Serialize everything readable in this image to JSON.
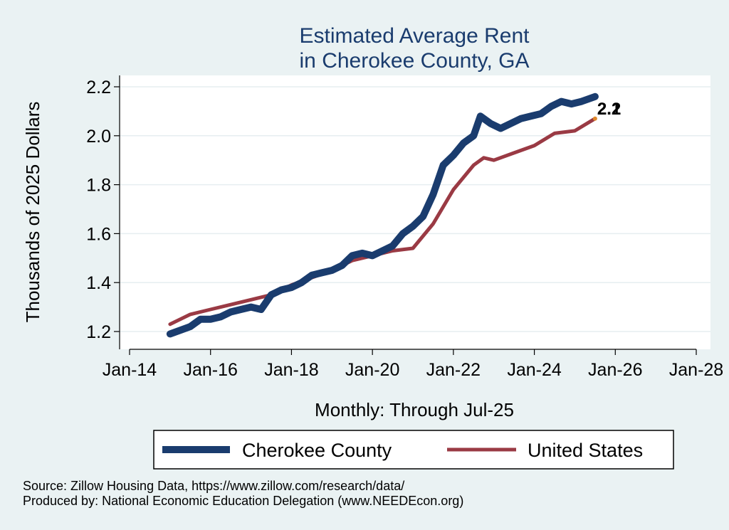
{
  "chart_data": {
    "type": "line",
    "title": [
      "Estimated Average Rent",
      "in Cherokee County, GA"
    ],
    "ylabel": "Thousands of 2025 Dollars",
    "xlabel": "Monthly: Through Jul-25",
    "x_range": [
      "2014-01",
      "2028-01"
    ],
    "ylim": [
      1.15,
      2.25
    ],
    "y_ticks": [
      1.2,
      1.4,
      1.6,
      1.8,
      2.0,
      2.2
    ],
    "y_tick_labels": [
      "1.2",
      "1.4",
      "1.6",
      "1.8",
      "2.0",
      "2.2"
    ],
    "x_ticks": [
      "2014-01",
      "2016-01",
      "2018-01",
      "2020-01",
      "2022-01",
      "2024-01",
      "2026-01",
      "2028-01"
    ],
    "x_tick_labels": [
      "Jan-14",
      "Jan-16",
      "Jan-18",
      "Jan-20",
      "Jan-22",
      "Jan-24",
      "Jan-26",
      "Jan-28"
    ],
    "grid": true,
    "legend_position": "bottom",
    "end_labels": [
      "2.2",
      "2.1"
    ],
    "series": [
      {
        "name": "Cherokee County",
        "color": "#1a3c6e",
        "points": [
          [
            "2015-01",
            1.19
          ],
          [
            "2015-07",
            1.22
          ],
          [
            "2015-10",
            1.25
          ],
          [
            "2016-01",
            1.25
          ],
          [
            "2016-04",
            1.26
          ],
          [
            "2016-07",
            1.28
          ],
          [
            "2016-10",
            1.29
          ],
          [
            "2017-01",
            1.3
          ],
          [
            "2017-04",
            1.29
          ],
          [
            "2017-07",
            1.35
          ],
          [
            "2017-10",
            1.37
          ],
          [
            "2018-01",
            1.38
          ],
          [
            "2018-04",
            1.4
          ],
          [
            "2018-07",
            1.43
          ],
          [
            "2018-10",
            1.44
          ],
          [
            "2019-01",
            1.45
          ],
          [
            "2019-04",
            1.47
          ],
          [
            "2019-07",
            1.51
          ],
          [
            "2019-10",
            1.52
          ],
          [
            "2020-01",
            1.51
          ],
          [
            "2020-04",
            1.53
          ],
          [
            "2020-07",
            1.55
          ],
          [
            "2020-10",
            1.6
          ],
          [
            "2021-01",
            1.63
          ],
          [
            "2021-04",
            1.67
          ],
          [
            "2021-07",
            1.76
          ],
          [
            "2021-10",
            1.88
          ],
          [
            "2022-01",
            1.92
          ],
          [
            "2022-04",
            1.97
          ],
          [
            "2022-07",
            2.0
          ],
          [
            "2022-09",
            2.08
          ],
          [
            "2022-12",
            2.05
          ],
          [
            "2023-03",
            2.03
          ],
          [
            "2023-06",
            2.05
          ],
          [
            "2023-09",
            2.07
          ],
          [
            "2023-12",
            2.08
          ],
          [
            "2024-03",
            2.09
          ],
          [
            "2024-06",
            2.12
          ],
          [
            "2024-09",
            2.14
          ],
          [
            "2024-12",
            2.13
          ],
          [
            "2025-03",
            2.14
          ],
          [
            "2025-07",
            2.16
          ]
        ]
      },
      {
        "name": "United States",
        "color": "#9a3a44",
        "points": [
          [
            "2015-01",
            1.23
          ],
          [
            "2015-07",
            1.27
          ],
          [
            "2016-01",
            1.29
          ],
          [
            "2016-07",
            1.31
          ],
          [
            "2017-01",
            1.33
          ],
          [
            "2017-07",
            1.35
          ],
          [
            "2018-01",
            1.39
          ],
          [
            "2018-07",
            1.42
          ],
          [
            "2019-01",
            1.45
          ],
          [
            "2019-07",
            1.49
          ],
          [
            "2020-01",
            1.51
          ],
          [
            "2020-07",
            1.53
          ],
          [
            "2021-01",
            1.54
          ],
          [
            "2021-07",
            1.64
          ],
          [
            "2022-01",
            1.78
          ],
          [
            "2022-07",
            1.88
          ],
          [
            "2022-10",
            1.91
          ],
          [
            "2023-01",
            1.9
          ],
          [
            "2023-07",
            1.93
          ],
          [
            "2024-01",
            1.96
          ],
          [
            "2024-07",
            2.01
          ],
          [
            "2025-01",
            2.02
          ],
          [
            "2025-07",
            2.07
          ]
        ]
      }
    ]
  },
  "footer": {
    "source": "Source: Zillow Housing Data, https://www.zillow.com/research/data/",
    "producer": "Produced by: National Economic Education Delegation (www.NEEDEcon.org)"
  }
}
